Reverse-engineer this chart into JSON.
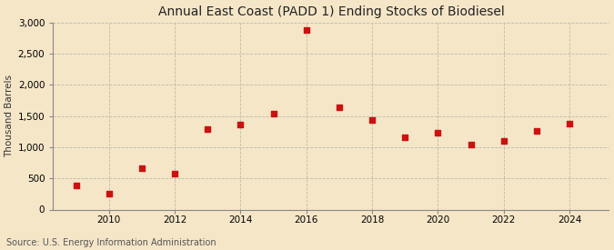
{
  "title": "Annual East Coast (PADD 1) Ending Stocks of Biodiesel",
  "ylabel": "Thousand Barrels",
  "source": "Source: U.S. Energy Information Administration",
  "background_color": "#f5e6c8",
  "plot_bg_color": "#f5e6c8",
  "marker_color": "#cc1111",
  "marker": "s",
  "marker_size": 4,
  "xlim": [
    2008.3,
    2025.2
  ],
  "ylim": [
    0,
    3000
  ],
  "yticks": [
    0,
    500,
    1000,
    1500,
    2000,
    2500,
    3000
  ],
  "xticks": [
    2010,
    2012,
    2014,
    2016,
    2018,
    2020,
    2022,
    2024
  ],
  "years": [
    2009,
    2010,
    2011,
    2012,
    2013,
    2014,
    2015,
    2016,
    2017,
    2018,
    2019,
    2020,
    2021,
    2022,
    2023,
    2024
  ],
  "values": [
    390,
    255,
    665,
    570,
    1295,
    1360,
    1535,
    2875,
    1640,
    1430,
    1165,
    1235,
    1040,
    1100,
    1265,
    1385
  ]
}
